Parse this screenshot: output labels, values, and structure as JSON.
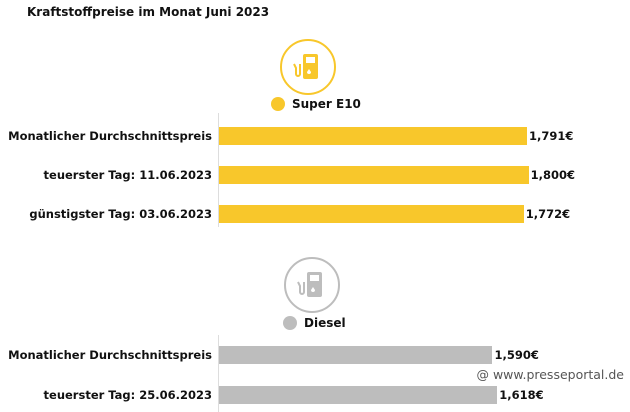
{
  "chart_data": [
    {
      "type": "bar",
      "orientation": "horizontal",
      "title": "Kraftstoffpreise im Monat Juni 2023",
      "series": [
        {
          "name": "Super E10",
          "color": "#f8c72b",
          "values": [
            1.791,
            1.8,
            1.772
          ],
          "labels": [
            "1,791€",
            "1,800€",
            "1,772€"
          ]
        }
      ],
      "categories": [
        "Monatlicher Durchschnittspreis",
        "teuerster Tag: 11.06.2023",
        "günstigster Tag: 03.06.2023"
      ],
      "icon": "fuel-pump-icon"
    },
    {
      "type": "bar",
      "orientation": "horizontal",
      "series": [
        {
          "name": "Diesel",
          "color": "#bdbdbd",
          "values": [
            1.59,
            1.618
          ],
          "labels": [
            "1,590€",
            "1,618€"
          ]
        }
      ],
      "categories": [
        "Monatlicher Durchschnittspreis",
        "teuerster Tag: 25.06.2023"
      ],
      "icon": "fuel-pump-icon"
    }
  ],
  "watermark": "@ www.presseportal.de"
}
